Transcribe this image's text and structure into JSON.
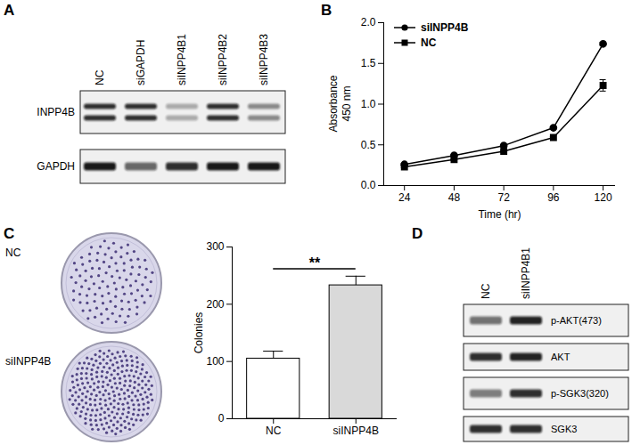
{
  "blots": [
    {
      "title": "A",
      "lanes": [
        "NC",
        "siGAPDH",
        "siINPP4B1",
        "siINPP4B2",
        "siINPP4B3"
      ],
      "rows": [
        {
          "label": "INPP4B",
          "bands": 2,
          "intensity": [
            0.85,
            0.85,
            0.3,
            0.85,
            0.45
          ]
        },
        {
          "label": "GAPDH",
          "bands": 1,
          "intensity": [
            0.95,
            0.6,
            0.85,
            0.95,
            0.95
          ]
        }
      ]
    },
    {
      "title": "D",
      "lanes": [
        "NC",
        "siINPP4B1"
      ],
      "rows": [
        {
          "label": "p-AKT(473)",
          "bands": 1,
          "intensity": [
            0.55,
            0.9
          ]
        },
        {
          "label": "AKT",
          "bands": 1,
          "intensity": [
            0.85,
            0.9
          ]
        },
        {
          "label": "p-SGK3(320)",
          "bands": 1,
          "intensity": [
            0.5,
            0.85
          ]
        },
        {
          "label": "SGK3",
          "bands": 1,
          "intensity": [
            0.85,
            0.85
          ]
        }
      ]
    }
  ],
  "dishes": [
    "NC",
    "siINPP4B"
  ],
  "chart_data": [
    {
      "title": "B",
      "type": "line",
      "x": [
        24,
        48,
        72,
        96,
        120
      ],
      "xlabel": "Time (hr)",
      "ylabel": "Absorbance\n450 nm",
      "xlim": [
        14,
        126
      ],
      "xticks": [
        24,
        48,
        72,
        96,
        120
      ],
      "ylim": [
        0,
        2
      ],
      "yticks": [
        {
          "value": 0,
          "label": "0.0"
        },
        {
          "value": 0.5,
          "label": "0.5"
        },
        {
          "value": 1,
          "label": "1.0"
        },
        {
          "value": 1.5,
          "label": "1.5"
        },
        {
          "value": 2,
          "label": "2.0"
        }
      ],
      "legend": "top-left",
      "series": [
        {
          "name": "siINPP4B",
          "color": "#000000",
          "marker": "circle",
          "values": [
            0.26,
            0.37,
            0.49,
            0.71,
            1.74
          ],
          "errors": [
            0.01,
            0.01,
            0.01,
            0.01,
            0.02
          ]
        },
        {
          "name": "NC",
          "color": "#000000",
          "marker": "square",
          "values": [
            0.23,
            0.32,
            0.42,
            0.59,
            1.23
          ],
          "errors": [
            0.01,
            0.01,
            0.01,
            0.01,
            0.07
          ]
        }
      ]
    },
    {
      "title": "C",
      "type": "bar",
      "categories": [
        "NC",
        "siINPP4B"
      ],
      "values": [
        105,
        233
      ],
      "errors": [
        13,
        16
      ],
      "ylabel": "Colonies",
      "ylim": [
        0,
        300
      ],
      "yticks": [
        0,
        100,
        200,
        300
      ],
      "colors": [
        "#ffffff",
        "#d9d9d9"
      ],
      "annotation": {
        "text": "**",
        "y": 262
      }
    }
  ]
}
